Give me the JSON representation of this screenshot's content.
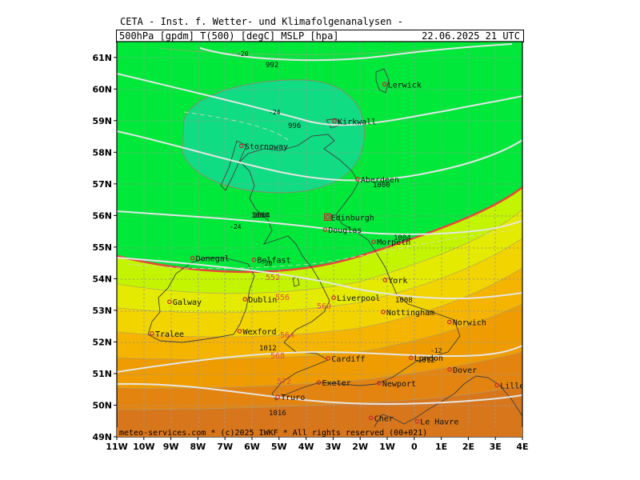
{
  "header": {
    "title": "CETA - Inst. f. Wetter- und Klimafolgenanalysen -",
    "params": "500hPa [gpdm] T(500) [degC] MSLP [hpa]",
    "datetime": "22.06.2025 21 UTC"
  },
  "credit": "meteo-services.com * (c)2025 IWKF * All rights reserved (00+021)",
  "lat_labels": [
    "61N",
    "60N",
    "59N",
    "58N",
    "57N",
    "56N",
    "55N",
    "54N",
    "53N",
    "52N",
    "51N",
    "50N",
    "49N"
  ],
  "lon_labels": [
    "11W",
    "10W",
    "9W",
    "8W",
    "7W",
    "6W",
    "5W",
    "4W",
    "3W",
    "2W",
    "1W",
    "0",
    "1E",
    "2E",
    "3E",
    "4E"
  ],
  "cities": [
    {
      "name": "Lerwick",
      "lon": -1.1,
      "lat": 60.15
    },
    {
      "name": "Kirkwall",
      "lon": -2.95,
      "lat": 58.98
    },
    {
      "name": "Stornoway",
      "lon": -6.39,
      "lat": 58.2
    },
    {
      "name": "Aberdeen",
      "lon": -2.1,
      "lat": 57.15
    },
    {
      "name": "Edinburgh",
      "lon": -3.2,
      "lat": 55.95
    },
    {
      "name": "Douglas",
      "lon": -3.3,
      "lat": 55.55
    },
    {
      "name": "Morpeth",
      "lon": -1.5,
      "lat": 55.17
    },
    {
      "name": "Donegal",
      "lon": -8.2,
      "lat": 54.65
    },
    {
      "name": "Belfast",
      "lon": -5.93,
      "lat": 54.6
    },
    {
      "name": "York",
      "lon": -1.08,
      "lat": 53.96
    },
    {
      "name": "Liverpool",
      "lon": -2.98,
      "lat": 53.4
    },
    {
      "name": "Galway",
      "lon": -9.05,
      "lat": 53.27
    },
    {
      "name": "Dublin",
      "lon": -6.26,
      "lat": 53.35
    },
    {
      "name": "Nottingham",
      "lon": -1.15,
      "lat": 52.95
    },
    {
      "name": "Norwich",
      "lon": 1.3,
      "lat": 52.63
    },
    {
      "name": "Tralee",
      "lon": -9.7,
      "lat": 52.27
    },
    {
      "name": "Wexford",
      "lon": -6.46,
      "lat": 52.34
    },
    {
      "name": "Cardiff",
      "lon": -3.18,
      "lat": 51.48
    },
    {
      "name": "London",
      "lon": -0.12,
      "lat": 51.5
    },
    {
      "name": "Dover",
      "lon": 1.31,
      "lat": 51.13
    },
    {
      "name": "Exeter",
      "lon": -3.53,
      "lat": 50.72
    },
    {
      "name": "Newport",
      "lon": -1.3,
      "lat": 50.7
    },
    {
      "name": "Truro",
      "lon": -5.05,
      "lat": 50.26
    },
    {
      "name": "Lille",
      "lon": 3.06,
      "lat": 50.63
    },
    {
      "name": "Le Havre",
      "lon": 0.1,
      "lat": 49.49
    },
    {
      "name": "Cher",
      "lon": -1.6,
      "lat": 49.6
    }
  ],
  "isobar_labels": [
    "992",
    "996",
    "1000",
    "1004",
    "1004",
    "1004",
    "1008",
    "1012",
    "1012",
    "1016"
  ],
  "temp_labels": [
    "-20",
    "-24",
    "-24",
    "-20",
    "-12"
  ],
  "gpdm_labels": [
    "552",
    "556",
    "560",
    "564",
    "568",
    "572"
  ],
  "colors": {
    "band_536": "#14d24c",
    "band_544": "#00e83a",
    "band_552": "#2cf21e",
    "band_556": "#c4f500",
    "band_560": "#e4ea00",
    "band_564": "#f2d400",
    "band_568": "#f4b400",
    "band_572": "#ee9c00",
    "band_576": "#e48410",
    "band_580": "#d8761c",
    "low_core": "#10dc84",
    "contour_552": "#e8463c",
    "isobar": "#e6e6e6",
    "grid": "#9a9a9a",
    "coast": "#404040",
    "city_marker": "#c8282e"
  }
}
